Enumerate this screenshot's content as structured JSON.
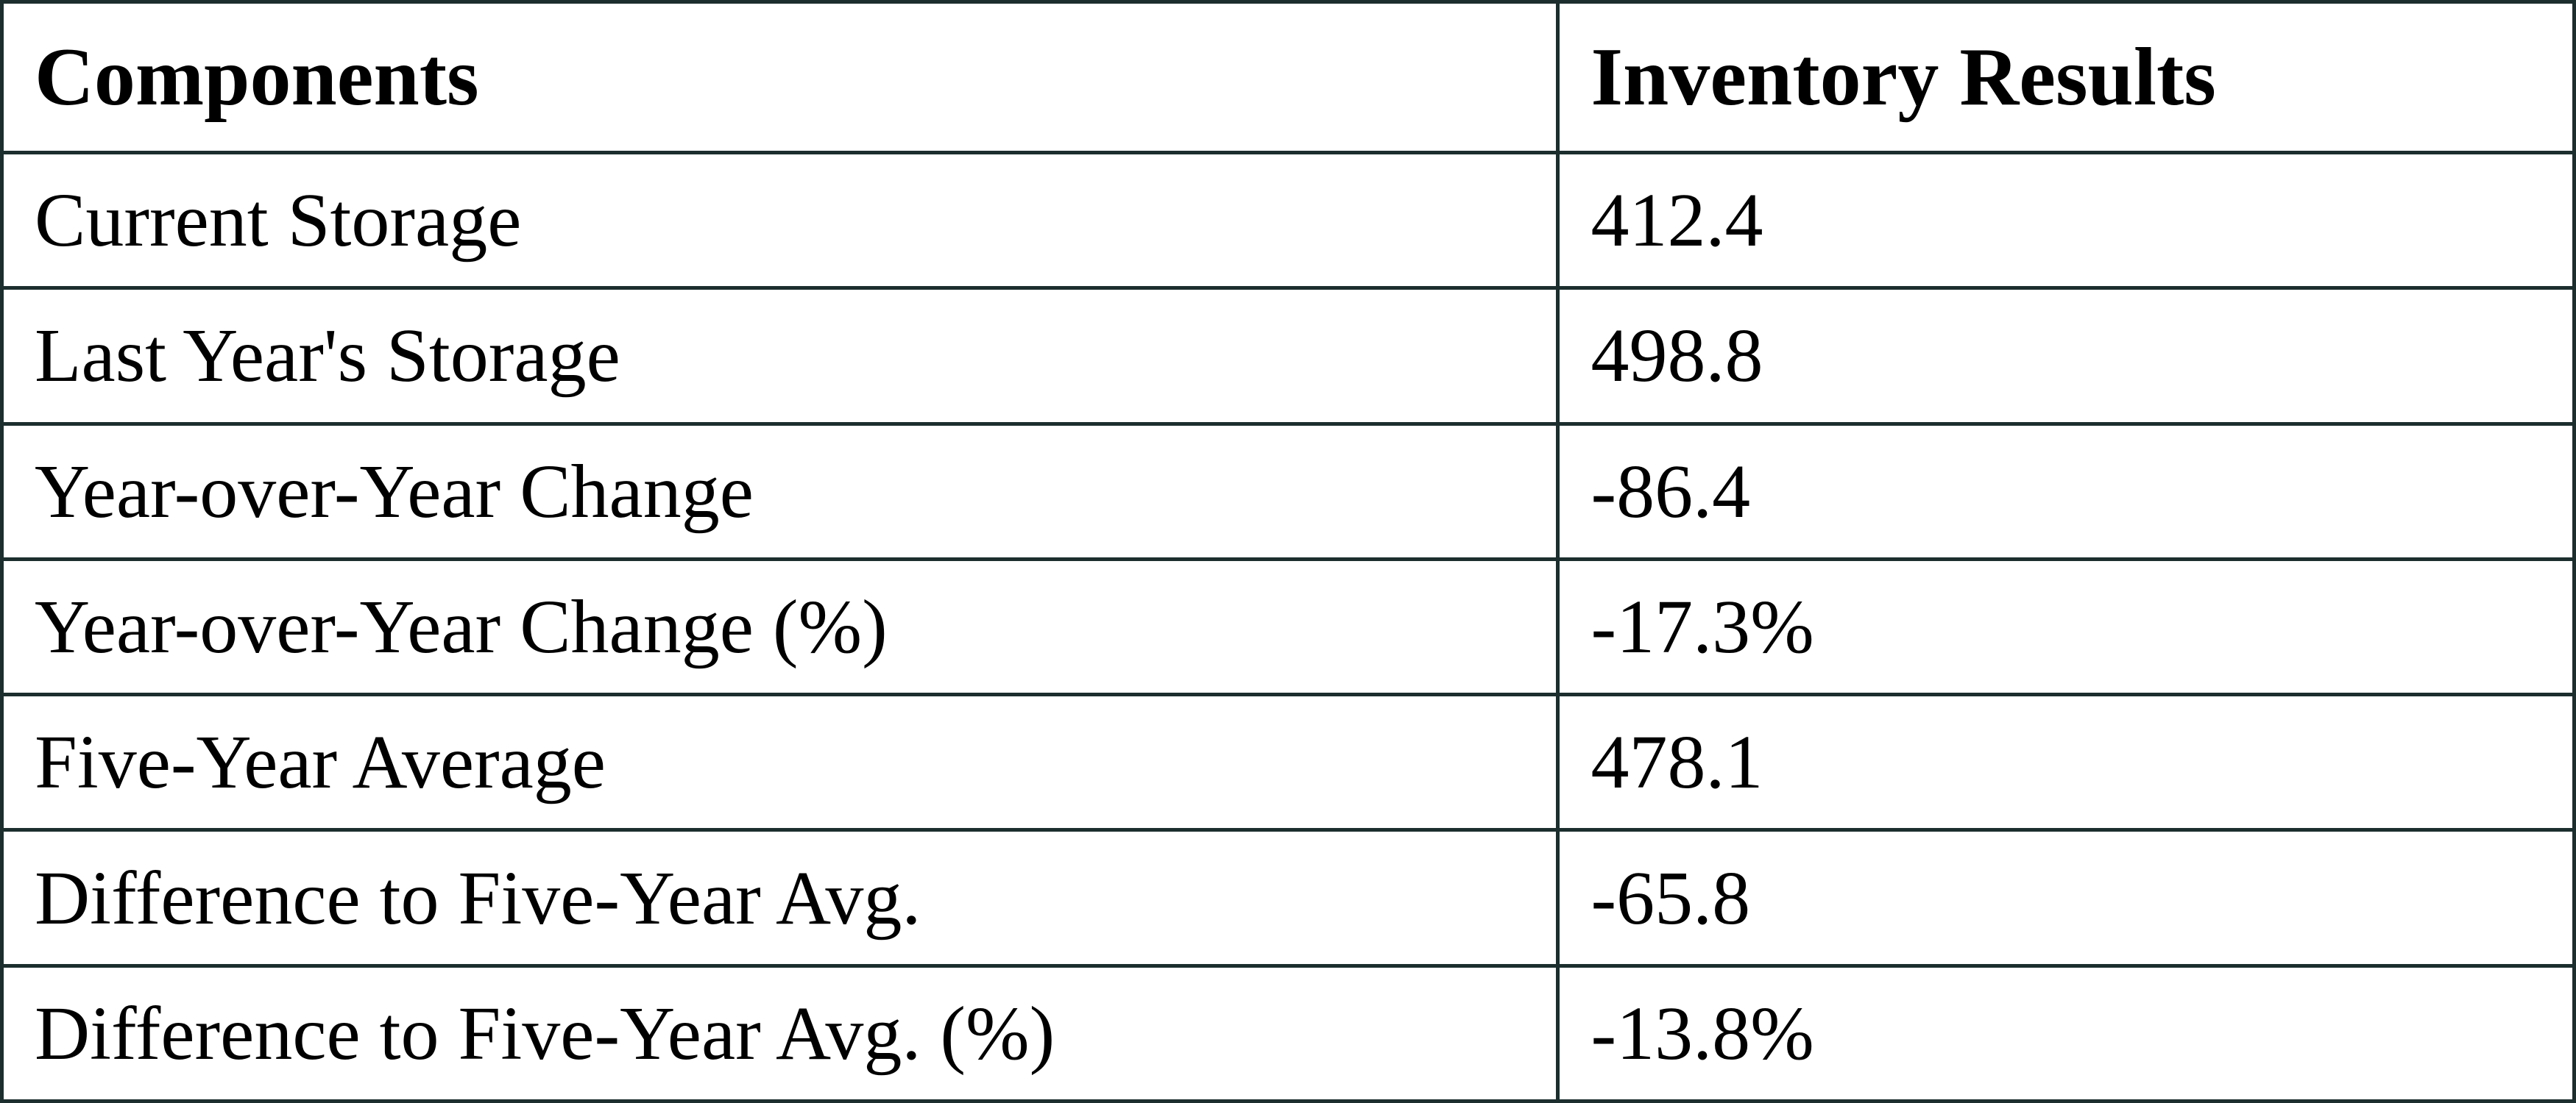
{
  "colors": {
    "border": "#1c2e2e",
    "background": "#ffffff",
    "text": "#000000"
  },
  "table": {
    "columns": {
      "components": "Components",
      "results": "Inventory Results"
    },
    "rows": [
      {
        "label": "Current Storage",
        "value": "412.4"
      },
      {
        "label": "Last Year's Storage",
        "value": "498.8"
      },
      {
        "label": "Year-over-Year Change",
        "value": "-86.4"
      },
      {
        "label": "Year-over-Year Change (%)",
        "value": "-17.3%"
      },
      {
        "label": "Five-Year Average",
        "value": "478.1"
      },
      {
        "label": "Difference to Five-Year Avg.",
        "value": "-65.8"
      },
      {
        "label": "Difference to Five-Year Avg. (%)",
        "value": "-13.8%"
      }
    ]
  },
  "chart_data": {
    "type": "table",
    "title": "",
    "columns": [
      "Components",
      "Inventory Results"
    ],
    "rows": [
      [
        "Current Storage",
        "412.4"
      ],
      [
        "Last Year's Storage",
        "498.8"
      ],
      [
        "Year-over-Year Change",
        "-86.4"
      ],
      [
        "Year-over-Year Change (%)",
        "-17.3%"
      ],
      [
        "Five-Year Average",
        "478.1"
      ],
      [
        "Difference to Five-Year Avg.",
        "-65.8"
      ],
      [
        "Difference to Five-Year Avg. (%)",
        "-13.8%"
      ]
    ],
    "values": {
      "current_storage": 412.4,
      "last_year_storage": 498.8,
      "yoy_change": -86.4,
      "yoy_change_pct": -17.3,
      "five_year_average": 478.1,
      "diff_to_five_year_avg": -65.8,
      "diff_to_five_year_avg_pct": -13.8
    }
  }
}
